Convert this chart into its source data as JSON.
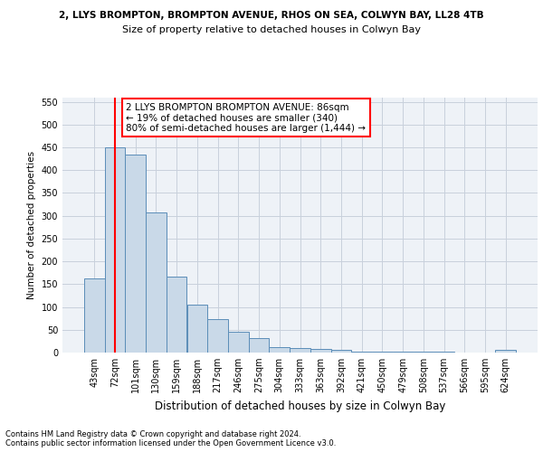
{
  "title_line1": "2, LLYS BROMPTON, BROMPTON AVENUE, RHOS ON SEA, COLWYN BAY, LL28 4TB",
  "title_line2": "Size of property relative to detached houses in Colwyn Bay",
  "xlabel": "Distribution of detached houses by size in Colwyn Bay",
  "ylabel": "Number of detached properties",
  "categories": [
    "43sqm",
    "72sqm",
    "101sqm",
    "130sqm",
    "159sqm",
    "188sqm",
    "217sqm",
    "246sqm",
    "275sqm",
    "304sqm",
    "333sqm",
    "363sqm",
    "392sqm",
    "421sqm",
    "450sqm",
    "479sqm",
    "508sqm",
    "537sqm",
    "566sqm",
    "595sqm",
    "624sqm"
  ],
  "values": [
    163,
    450,
    435,
    307,
    167,
    106,
    74,
    45,
    32,
    11,
    10,
    8,
    5,
    2,
    2,
    1,
    1,
    1,
    0,
    0,
    5
  ],
  "bar_color": "#c9d9e8",
  "bar_edge_color": "#5b8db8",
  "red_line_x": 1.0,
  "annotation_text": "2 LLYS BROMPTON BROMPTON AVENUE: 86sqm\n← 19% of detached houses are smaller (340)\n80% of semi-detached houses are larger (1,444) →",
  "footer_line1": "Contains HM Land Registry data © Crown copyright and database right 2024.",
  "footer_line2": "Contains public sector information licensed under the Open Government Licence v3.0.",
  "ylim": [
    0,
    560
  ],
  "yticks": [
    0,
    50,
    100,
    150,
    200,
    250,
    300,
    350,
    400,
    450,
    500,
    550
  ],
  "bg_color": "#eef2f7",
  "grid_color": "#c8d0dc",
  "title1_fontsize": 7.5,
  "title2_fontsize": 8.0,
  "ylabel_fontsize": 7.5,
  "xlabel_fontsize": 8.5,
  "tick_fontsize": 7.0,
  "annot_fontsize": 7.5,
  "footer_fontsize": 6.0
}
